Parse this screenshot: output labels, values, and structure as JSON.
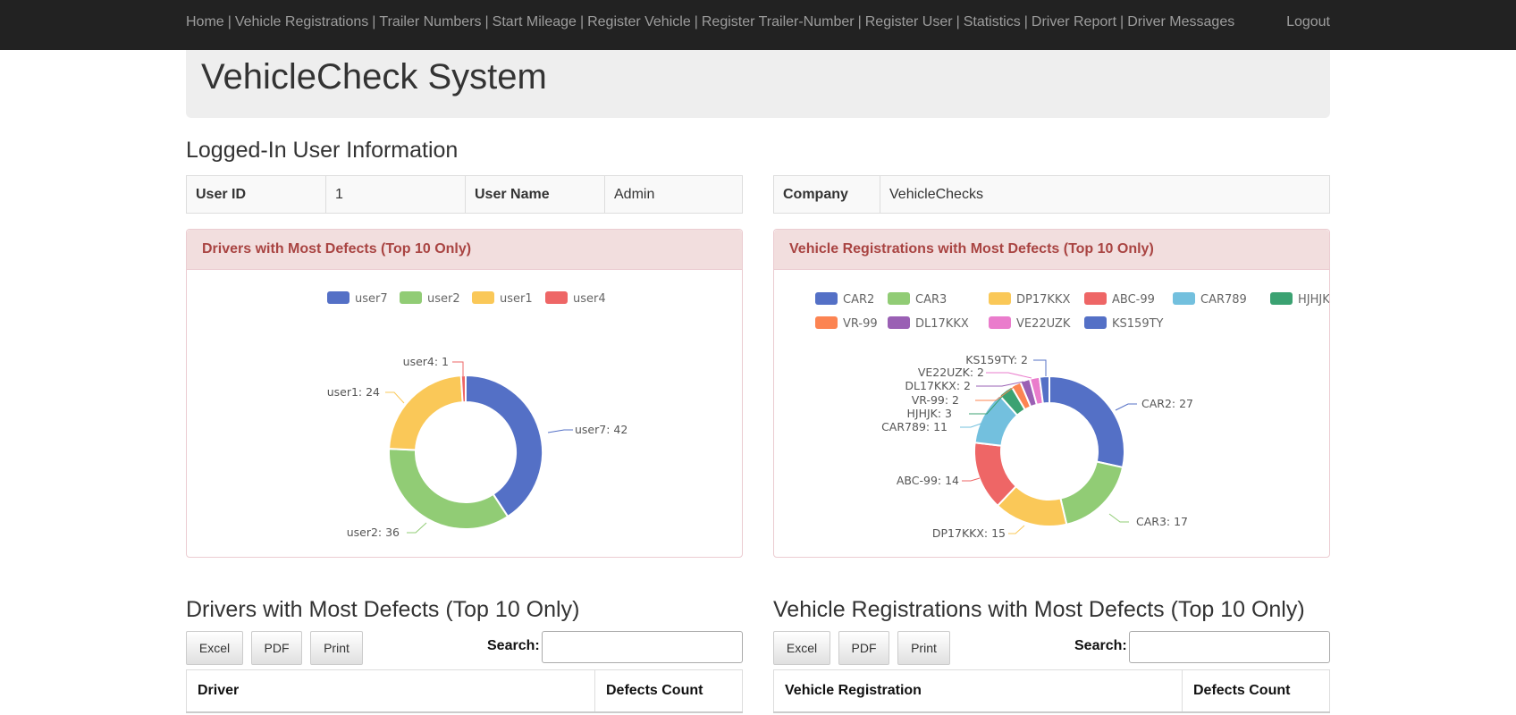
{
  "nav": {
    "links": [
      "Home",
      "Vehicle Registrations",
      "Trailer Numbers",
      "Start Mileage",
      "Register Vehicle",
      "Register Trailer-Number",
      "Register User",
      "Statistics",
      "Driver Report",
      "Driver Messages"
    ],
    "logout": "Logout"
  },
  "header": {
    "title": "VehicleCheck System"
  },
  "user_info": {
    "heading": "Logged-In User Information",
    "user_id_label": "User ID",
    "user_id": "1",
    "user_name_label": "User Name",
    "user_name": "Admin",
    "company_label": "Company",
    "company": "VehicleChecks"
  },
  "chart_data": [
    {
      "type": "pie",
      "title": "Drivers with Most Defects (Top 10 Only)",
      "categories": [
        "user7",
        "user2",
        "user1",
        "user4"
      ],
      "values": [
        42,
        36,
        24,
        1
      ],
      "colors": [
        "#5470c6",
        "#91cc75",
        "#fac858",
        "#ee6666"
      ],
      "legend": "top"
    },
    {
      "type": "pie",
      "title": "Vehicle Registrations with Most Defects (Top 10 Only)",
      "categories": [
        "CAR2",
        "CAR3",
        "DP17KKX",
        "ABC-99",
        "CAR789",
        "HJHJK",
        "VR-99",
        "DL17KKX",
        "VE22UZK",
        "KS159TY"
      ],
      "values": [
        27,
        17,
        15,
        14,
        11,
        3,
        2,
        2,
        2,
        2
      ],
      "colors": [
        "#5470c6",
        "#91cc75",
        "#fac858",
        "#ee6666",
        "#73c0de",
        "#3ba272",
        "#fc8452",
        "#9a60b4",
        "#ea7ccc",
        "#5470c6"
      ],
      "legend": "top"
    }
  ],
  "drivers_table": {
    "heading": "Drivers with Most Defects (Top 10 Only)",
    "buttons": [
      "Excel",
      "PDF",
      "Print"
    ],
    "search_label": "Search:",
    "columns": [
      "Driver",
      "Defects Count"
    ]
  },
  "vehicles_table": {
    "heading": "Vehicle Registrations with Most Defects (Top 10 Only)",
    "buttons": [
      "Excel",
      "PDF",
      "Print"
    ],
    "search_label": "Search:",
    "columns": [
      "Vehicle Registration",
      "Defects Count"
    ]
  }
}
